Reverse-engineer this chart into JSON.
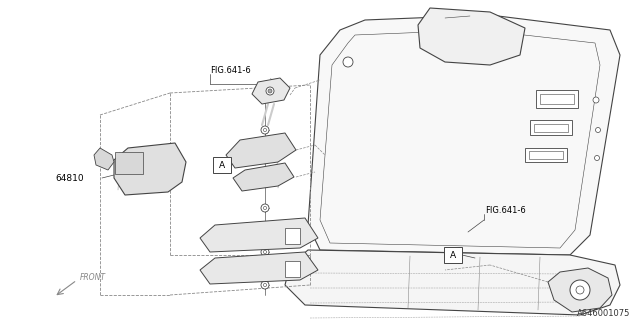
{
  "bg_color": "#ffffff",
  "fig_width": 6.4,
  "fig_height": 3.2,
  "dpi": 100,
  "diagram_code": "A646001075",
  "part_number": "64810",
  "fig_ref1": "FIG.641-6",
  "fig_ref2": "FIG.641-6",
  "front_label": "FRONT",
  "lc": "#444444",
  "tc": "#000000",
  "fs_small": 6.0,
  "fs_label": 6.5,
  "fs_code": 6.0
}
